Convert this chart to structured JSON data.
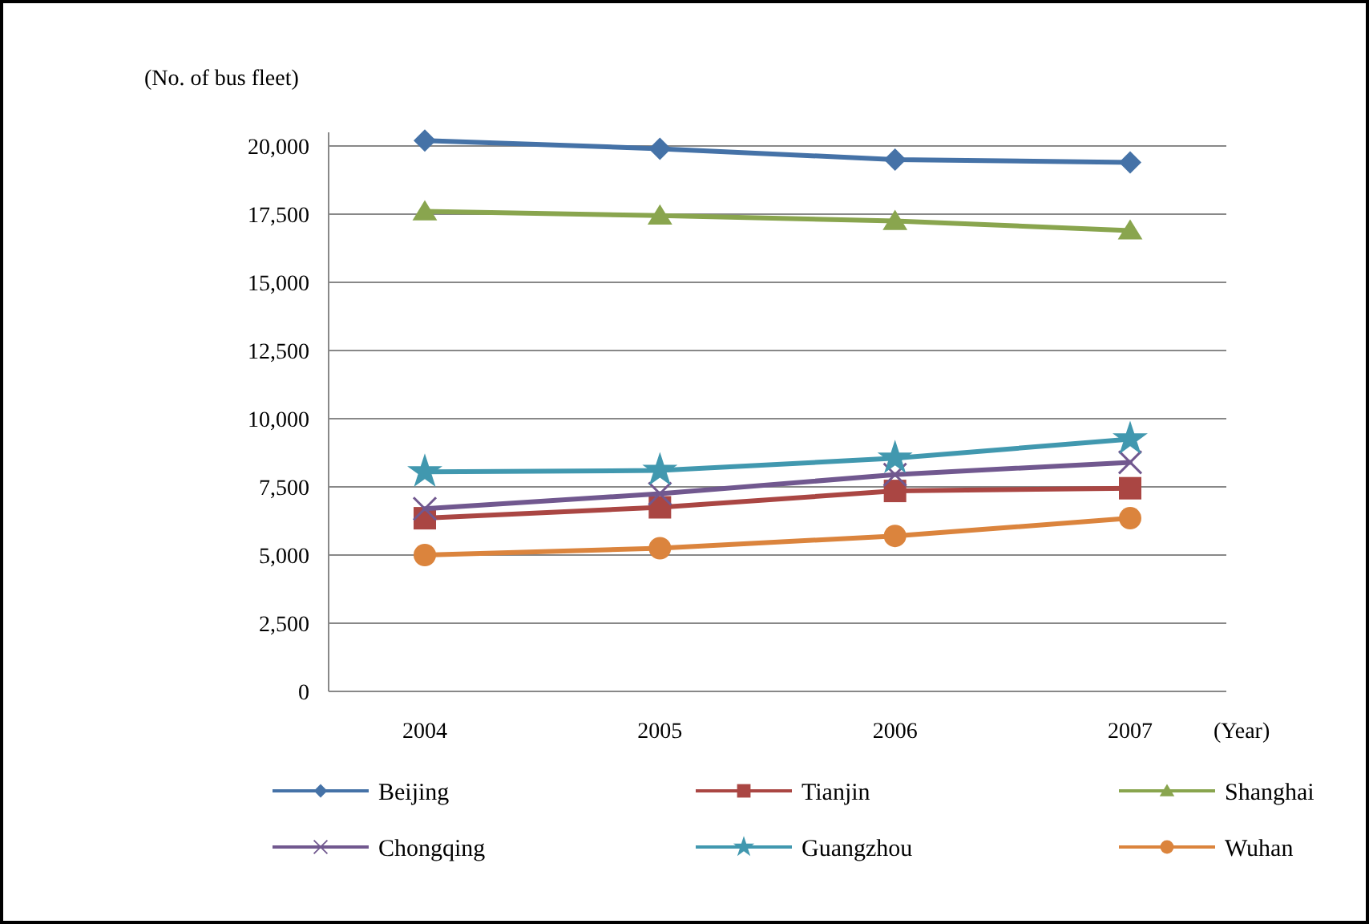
{
  "chart_data": {
    "type": "line",
    "ylabel": "(No. of bus fleet)",
    "xlabel": "(Year)",
    "categories": [
      "2004",
      "2005",
      "2006",
      "2007"
    ],
    "ylim": [
      0,
      20500
    ],
    "yticks": [
      {
        "value": 0,
        "label": "0"
      },
      {
        "value": 2500,
        "label": "2,500"
      },
      {
        "value": 5000,
        "label": "5,000"
      },
      {
        "value": 7500,
        "label": "7,500"
      },
      {
        "value": 10000,
        "label": "10,000"
      },
      {
        "value": 12500,
        "label": "12,500"
      },
      {
        "value": 15000,
        "label": "15,000"
      },
      {
        "value": 17500,
        "label": "17,500"
      },
      {
        "value": 20000,
        "label": "20,000"
      }
    ],
    "grid": "y",
    "legend": "bottom",
    "line_style": "solid",
    "series": [
      {
        "name": "Beijing",
        "color": "#4572a7",
        "marker": "diamond",
        "values": [
          20200,
          19900,
          19500,
          19400
        ]
      },
      {
        "name": "Tianjin",
        "color": "#aa4643",
        "marker": "square",
        "values": [
          6350,
          6750,
          7350,
          7450
        ]
      },
      {
        "name": "Shanghai",
        "color": "#89a54e",
        "marker": "triangle",
        "values": [
          17600,
          17450,
          17250,
          16900
        ]
      },
      {
        "name": "Chongqing",
        "color": "#71588f",
        "marker": "cross",
        "values": [
          6700,
          7250,
          7950,
          8400
        ]
      },
      {
        "name": "Guangzhou",
        "color": "#4198af",
        "marker": "star",
        "values": [
          8050,
          8100,
          8550,
          9250
        ]
      },
      {
        "name": "Wuhan",
        "color": "#db843d",
        "marker": "circle",
        "values": [
          5000,
          5250,
          5700,
          6350
        ]
      }
    ]
  }
}
